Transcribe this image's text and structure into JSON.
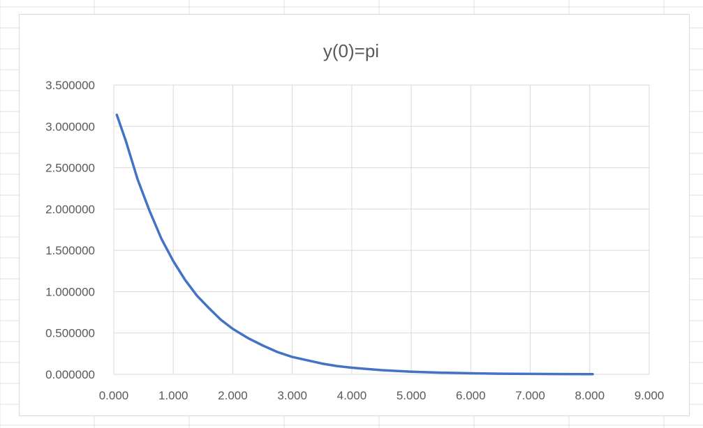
{
  "chart_data": {
    "type": "line",
    "title": "y(0)=pi",
    "xlabel": "",
    "ylabel": "",
    "xlim": [
      0,
      9
    ],
    "ylim": [
      0,
      3.5
    ],
    "x_ticks": [
      "0.000",
      "1.000",
      "2.000",
      "3.000",
      "4.000",
      "5.000",
      "6.000",
      "7.000",
      "8.000",
      "9.000"
    ],
    "y_ticks": [
      "0.000000",
      "0.500000",
      "1.000000",
      "1.500000",
      "2.000000",
      "2.500000",
      "3.000000",
      "3.500000"
    ],
    "grid": true,
    "legend": "none",
    "series": [
      {
        "color": "#4472c4",
        "x": [
          0.05,
          0.2,
          0.4,
          0.6,
          0.8,
          1.0,
          1.2,
          1.4,
          1.6,
          1.8,
          2.0,
          2.25,
          2.5,
          2.75,
          3.0,
          3.25,
          3.5,
          3.75,
          4.0,
          4.5,
          5.0,
          5.5,
          6.0,
          6.5,
          7.0,
          7.5,
          8.0,
          8.05
        ],
        "y": [
          3.14,
          2.83,
          2.36,
          1.98,
          1.64,
          1.37,
          1.14,
          0.95,
          0.8,
          0.66,
          0.55,
          0.44,
          0.35,
          0.27,
          0.21,
          0.17,
          0.13,
          0.1,
          0.08,
          0.051,
          0.032,
          0.02,
          0.013,
          0.008,
          0.005,
          0.003,
          0.002,
          0.002
        ]
      }
    ]
  }
}
